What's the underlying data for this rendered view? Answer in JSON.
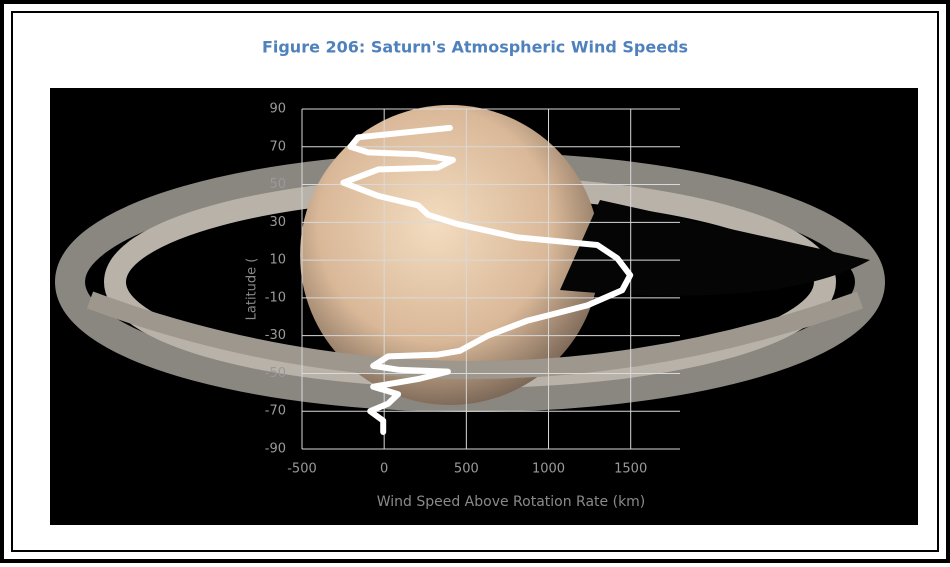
{
  "chart_data": {
    "type": "line",
    "title": "Figure 206: Saturn's Atmospheric Wind Speeds",
    "x_label": "Wind Speed Above Rotation Rate (km)",
    "y_label": "Latitude (",
    "x": [
      400,
      -158,
      -205,
      -97,
      206,
      418,
      327,
      -36,
      -248,
      -36,
      206,
      267,
      448,
      812,
      1297,
      1418,
      1497,
      1448,
      1236,
      873,
      630,
      461,
      327,
      24,
      -67,
      85,
      388,
      206,
      -67,
      85,
      24,
      -85,
      -6,
      -6
    ],
    "series": [
      {
        "color": "#ffffff",
        "values": [
          80,
          75,
          70,
          67,
          66,
          63,
          59,
          58,
          51,
          44,
          39,
          34,
          29,
          22,
          18,
          11,
          2,
          -6,
          -14,
          -22,
          -30,
          -38,
          -40,
          -41,
          -46,
          -48,
          -49,
          -53,
          -57,
          -61,
          -66,
          -70,
          -75,
          -81
        ]
      }
    ],
    "xlim": [
      -500,
      1800
    ],
    "ylim": [
      -90,
      90
    ],
    "xticks": [
      -500,
      0,
      500,
      1000,
      1500
    ],
    "yticks": [
      90,
      70,
      50,
      30,
      10,
      -10,
      -30,
      -50,
      -70,
      -90
    ],
    "grid": true
  }
}
